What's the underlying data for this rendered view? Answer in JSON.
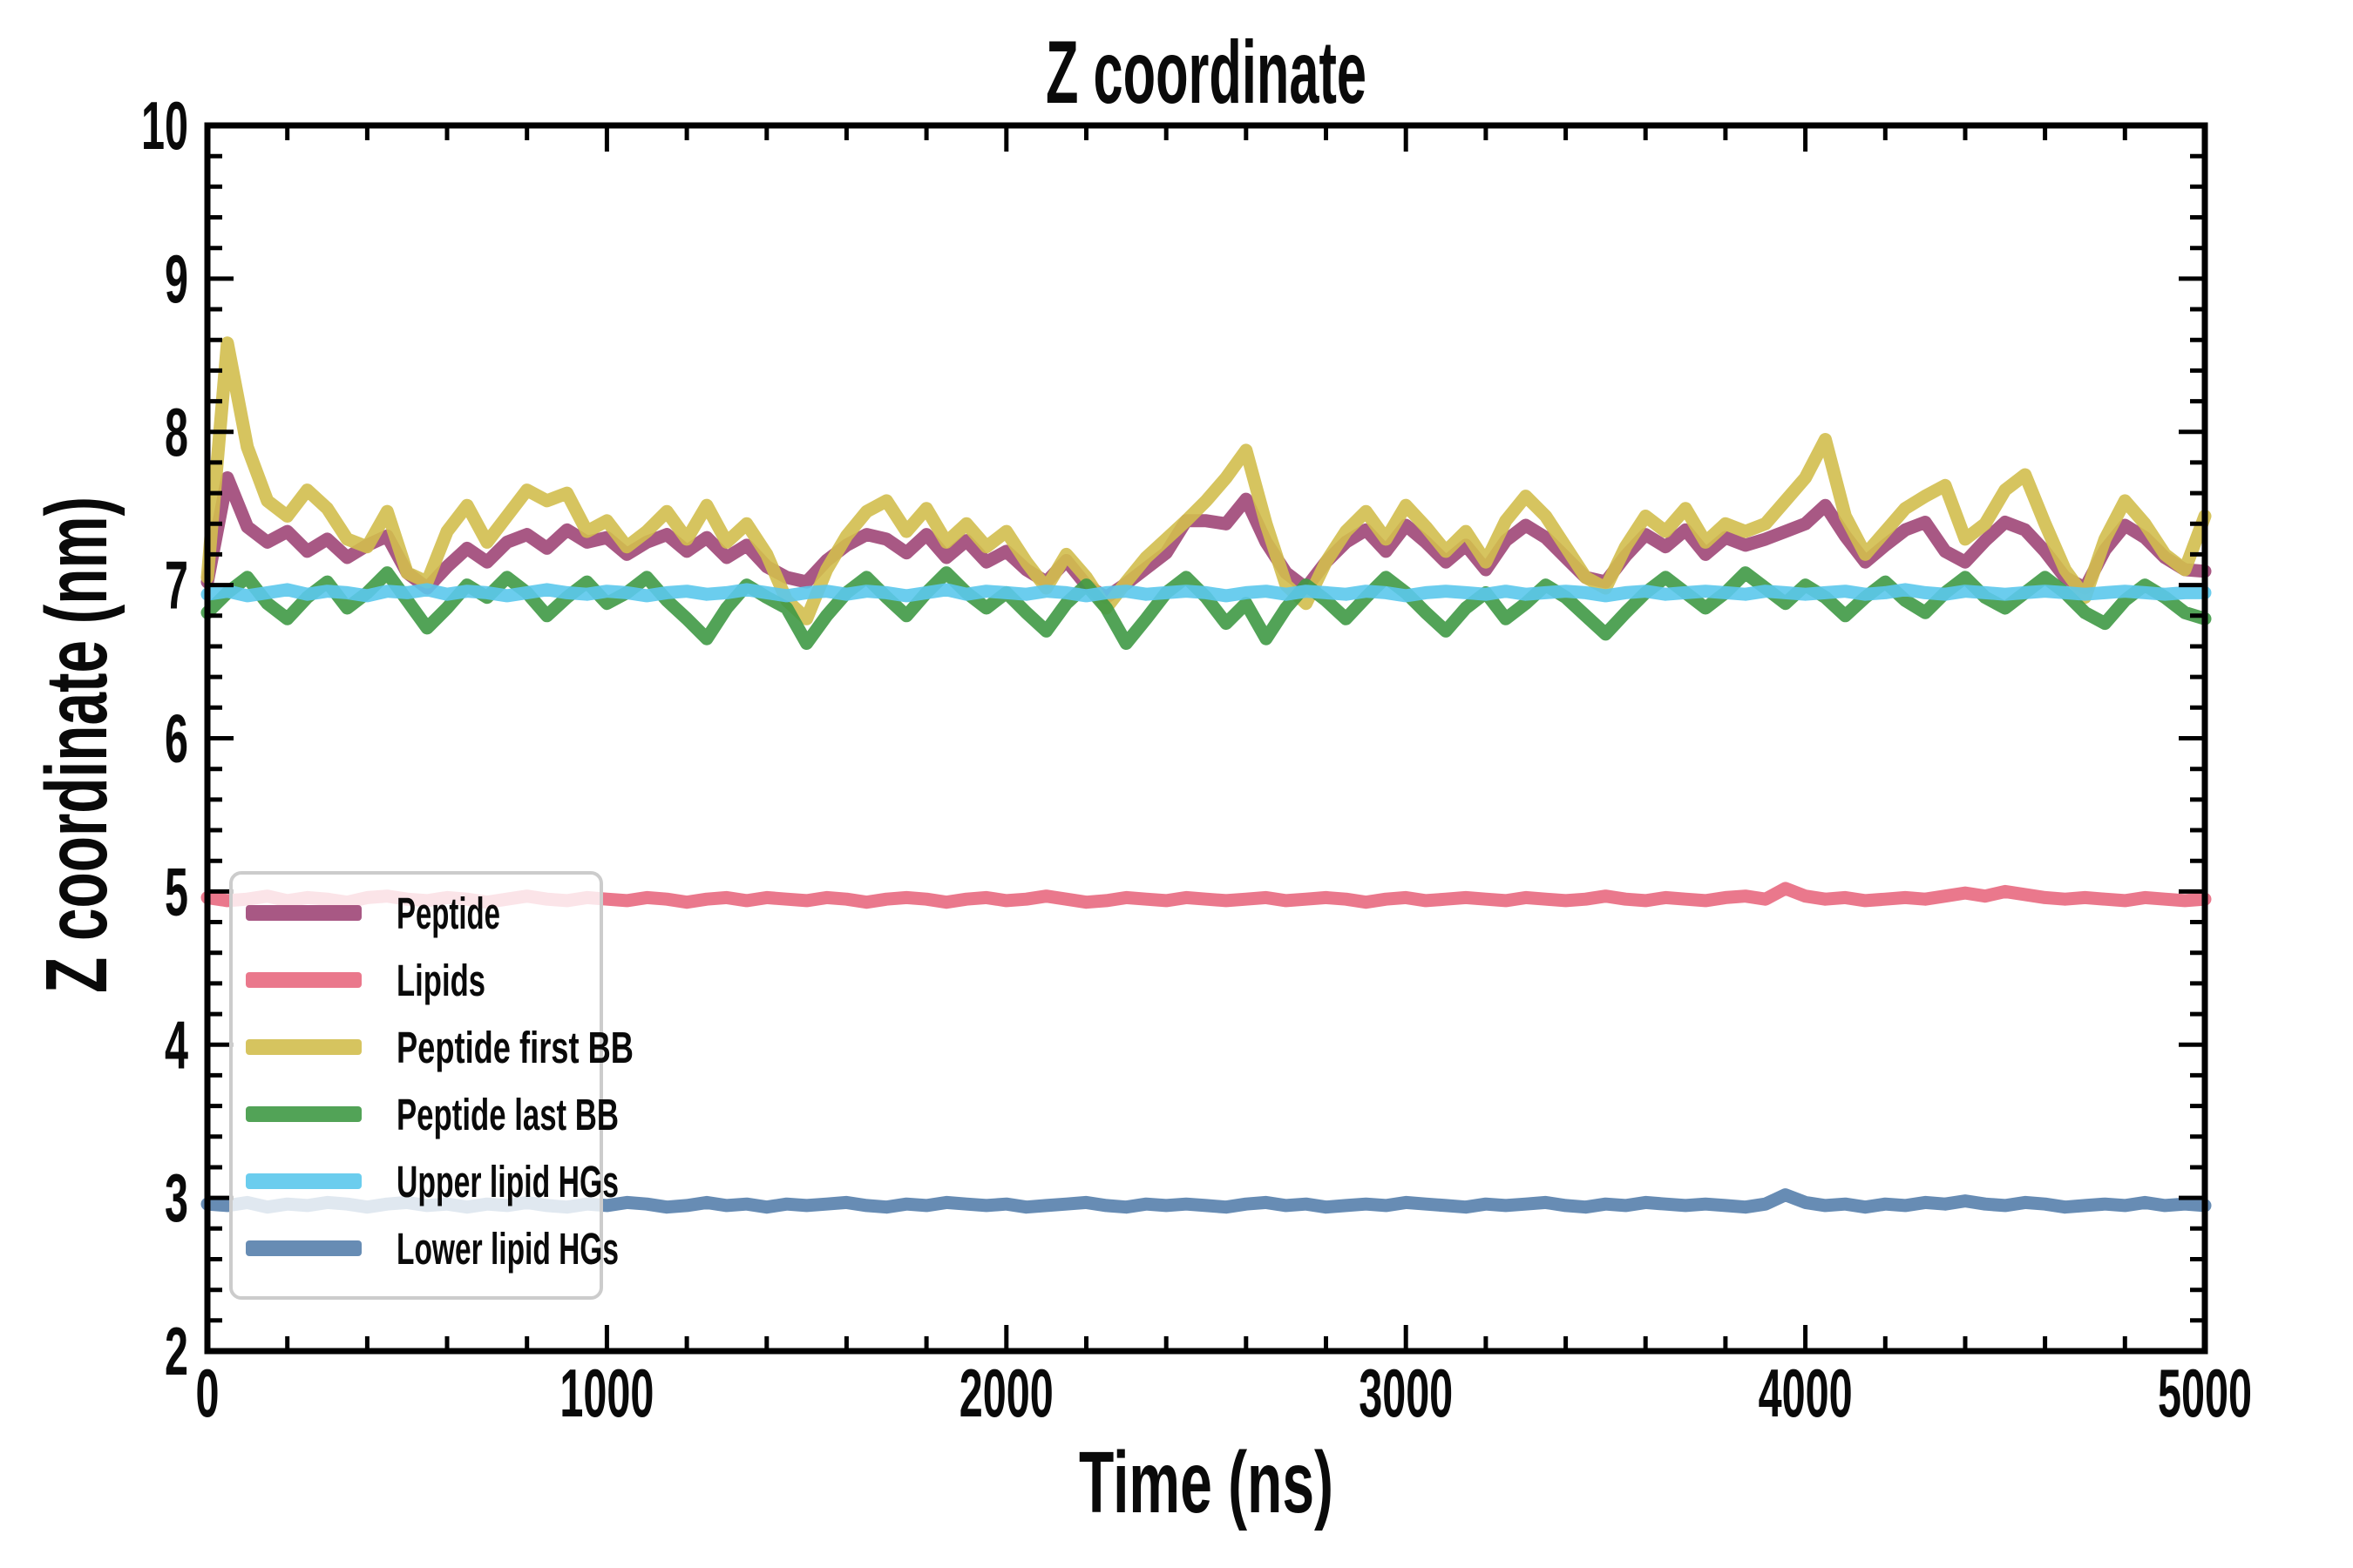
{
  "chart_data": {
    "type": "line",
    "title": "Z coordinate",
    "xlabel": "Time (ns)",
    "ylabel": "Z coordinate (nm)",
    "xlim": [
      0,
      5000
    ],
    "ylim": [
      2,
      10
    ],
    "x_tick_labels": [
      "0",
      "1000",
      "2000",
      "3000",
      "4000",
      "5000"
    ],
    "y_tick_labels": [
      "2",
      "3",
      "4",
      "5",
      "6",
      "7",
      "8",
      "9",
      "10"
    ],
    "x_major_step": 1000,
    "x_minor_step": 200,
    "y_major_step": 1,
    "y_minor_step": 0.2,
    "grid": false,
    "axis_color": "#000000",
    "background": "#ffffff",
    "line_alpha": 0.9,
    "legend": {
      "position": "lower-left",
      "border_color": "#cccccc",
      "background": "rgba(255,255,255,0.8)"
    },
    "x_start": 0,
    "x_step": 50,
    "series": [
      {
        "name": "Peptide",
        "color": "#9E4677",
        "values": [
          7.02,
          7.7,
          7.38,
          7.28,
          7.35,
          7.22,
          7.3,
          7.18,
          7.26,
          7.32,
          7.08,
          6.98,
          7.12,
          7.24,
          7.15,
          7.28,
          7.33,
          7.24,
          7.36,
          7.28,
          7.31,
          7.2,
          7.28,
          7.33,
          7.22,
          7.31,
          7.18,
          7.26,
          7.12,
          7.05,
          7.02,
          7.16,
          7.26,
          7.33,
          7.3,
          7.21,
          7.33,
          7.18,
          7.29,
          7.15,
          7.22,
          7.1,
          7.02,
          7.16,
          7.0,
          6.92,
          7.01,
          7.11,
          7.21,
          7.42,
          7.42,
          7.4,
          7.56,
          7.28,
          7.08,
          6.98,
          7.15,
          7.28,
          7.36,
          7.22,
          7.39,
          7.28,
          7.15,
          7.26,
          7.1,
          7.29,
          7.39,
          7.31,
          7.18,
          7.05,
          7.02,
          7.19,
          7.33,
          7.25,
          7.36,
          7.2,
          7.31,
          7.26,
          7.3,
          7.35,
          7.4,
          7.52,
          7.32,
          7.15,
          7.26,
          7.36,
          7.41,
          7.22,
          7.15,
          7.29,
          7.41,
          7.36,
          7.22,
          7.05,
          6.98,
          7.23,
          7.39,
          7.31,
          7.18,
          7.1,
          7.09
        ]
      },
      {
        "name": "Lipids",
        "color": "#E8697F",
        "values": [
          4.96,
          4.94,
          4.95,
          4.97,
          4.94,
          4.96,
          4.95,
          4.93,
          4.96,
          4.97,
          4.95,
          4.94,
          4.96,
          4.95,
          4.93,
          4.95,
          4.97,
          4.95,
          4.94,
          4.96,
          4.95,
          4.94,
          4.96,
          4.95,
          4.93,
          4.95,
          4.96,
          4.94,
          4.96,
          4.95,
          4.94,
          4.96,
          4.95,
          4.93,
          4.95,
          4.96,
          4.95,
          4.93,
          4.95,
          4.96,
          4.94,
          4.95,
          4.97,
          4.95,
          4.93,
          4.94,
          4.96,
          4.95,
          4.94,
          4.96,
          4.95,
          4.94,
          4.95,
          4.96,
          4.94,
          4.95,
          4.96,
          4.95,
          4.93,
          4.95,
          4.96,
          4.94,
          4.95,
          4.96,
          4.95,
          4.94,
          4.96,
          4.95,
          4.94,
          4.95,
          4.97,
          4.95,
          4.94,
          4.96,
          4.95,
          4.94,
          4.96,
          4.97,
          4.95,
          5.02,
          4.97,
          4.95,
          4.96,
          4.94,
          4.95,
          4.96,
          4.95,
          4.97,
          4.99,
          4.97,
          5.0,
          4.98,
          4.96,
          4.95,
          4.96,
          4.95,
          4.94,
          4.96,
          4.95,
          4.94,
          4.95
        ]
      },
      {
        "name": "Peptide first BB",
        "color": "#D2BE4E",
        "values": [
          7.05,
          8.58,
          7.9,
          7.55,
          7.45,
          7.62,
          7.5,
          7.3,
          7.25,
          7.48,
          7.08,
          7.02,
          7.35,
          7.52,
          7.28,
          7.45,
          7.62,
          7.55,
          7.6,
          7.35,
          7.42,
          7.25,
          7.35,
          7.48,
          7.3,
          7.52,
          7.28,
          7.4,
          7.2,
          6.9,
          6.78,
          7.1,
          7.32,
          7.48,
          7.55,
          7.35,
          7.5,
          7.28,
          7.4,
          7.25,
          7.35,
          7.15,
          6.98,
          7.2,
          7.05,
          6.85,
          7.02,
          7.18,
          7.3,
          7.42,
          7.55,
          7.7,
          7.88,
          7.4,
          7.0,
          6.88,
          7.15,
          7.35,
          7.48,
          7.3,
          7.52,
          7.38,
          7.22,
          7.35,
          7.15,
          7.42,
          7.58,
          7.45,
          7.25,
          7.05,
          6.98,
          7.25,
          7.45,
          7.35,
          7.5,
          7.28,
          7.4,
          7.35,
          7.4,
          7.55,
          7.7,
          7.95,
          7.45,
          7.2,
          7.35,
          7.5,
          7.58,
          7.65,
          7.3,
          7.4,
          7.62,
          7.72,
          7.4,
          7.1,
          6.92,
          7.3,
          7.55,
          7.4,
          7.2,
          7.1,
          7.45
        ]
      },
      {
        "name": "Peptide last BB",
        "color": "#3F9945",
        "values": [
          6.82,
          6.95,
          7.05,
          6.88,
          6.78,
          6.92,
          7.02,
          6.85,
          6.95,
          7.08,
          6.9,
          6.72,
          6.85,
          7.0,
          6.92,
          7.05,
          6.95,
          6.8,
          6.92,
          7.02,
          6.88,
          6.95,
          7.05,
          6.9,
          6.78,
          6.65,
          6.85,
          7.0,
          6.92,
          6.85,
          6.62,
          6.8,
          6.95,
          7.05,
          6.92,
          6.8,
          6.95,
          7.08,
          6.95,
          6.85,
          6.95,
          6.82,
          6.7,
          6.88,
          7.0,
          6.85,
          6.62,
          6.78,
          6.95,
          7.05,
          6.92,
          6.75,
          6.88,
          6.65,
          6.85,
          7.0,
          6.9,
          6.78,
          6.92,
          7.05,
          6.95,
          6.82,
          6.7,
          6.85,
          6.95,
          6.78,
          6.88,
          7.0,
          6.92,
          6.8,
          6.68,
          6.82,
          6.95,
          7.05,
          6.95,
          6.85,
          6.95,
          7.08,
          6.98,
          6.88,
          7.0,
          6.92,
          6.8,
          6.92,
          7.02,
          6.9,
          6.82,
          6.95,
          7.05,
          6.92,
          6.85,
          6.95,
          7.05,
          6.95,
          6.82,
          6.75,
          6.9,
          7.0,
          6.92,
          6.82,
          6.78
        ]
      },
      {
        "name": "Upper lipid HGs",
        "color": "#5BC8EC",
        "values": [
          6.94,
          6.96,
          6.93,
          6.95,
          6.97,
          6.94,
          6.96,
          6.95,
          6.93,
          6.96,
          6.95,
          6.97,
          6.94,
          6.96,
          6.95,
          6.93,
          6.95,
          6.97,
          6.95,
          6.94,
          6.96,
          6.95,
          6.93,
          6.95,
          6.96,
          6.94,
          6.95,
          6.97,
          6.95,
          6.93,
          6.95,
          6.96,
          6.94,
          6.96,
          6.95,
          6.93,
          6.95,
          6.97,
          6.94,
          6.96,
          6.95,
          6.94,
          6.96,
          6.95,
          6.93,
          6.95,
          6.96,
          6.94,
          6.95,
          6.96,
          6.95,
          6.93,
          6.95,
          6.96,
          6.94,
          6.96,
          6.95,
          6.94,
          6.96,
          6.95,
          6.93,
          6.95,
          6.96,
          6.95,
          6.94,
          6.96,
          6.94,
          6.95,
          6.96,
          6.95,
          6.93,
          6.95,
          6.96,
          6.94,
          6.95,
          6.96,
          6.95,
          6.94,
          6.96,
          6.95,
          6.94,
          6.95,
          6.96,
          6.94,
          6.95,
          6.97,
          6.95,
          6.94,
          6.96,
          6.95,
          6.94,
          6.95,
          6.96,
          6.95,
          6.94,
          6.95,
          6.96,
          6.95,
          6.94,
          6.95,
          6.95
        ]
      },
      {
        "name": "Lower lipid HGs",
        "color": "#567FAC",
        "values": [
          2.96,
          2.95,
          2.97,
          2.94,
          2.96,
          2.95,
          2.97,
          2.96,
          2.94,
          2.96,
          2.97,
          2.95,
          2.96,
          2.94,
          2.96,
          2.95,
          2.97,
          2.95,
          2.94,
          2.96,
          2.95,
          2.97,
          2.96,
          2.94,
          2.95,
          2.97,
          2.95,
          2.96,
          2.94,
          2.96,
          2.95,
          2.96,
          2.97,
          2.95,
          2.94,
          2.96,
          2.95,
          2.97,
          2.96,
          2.95,
          2.96,
          2.94,
          2.95,
          2.96,
          2.97,
          2.95,
          2.94,
          2.96,
          2.95,
          2.96,
          2.95,
          2.94,
          2.96,
          2.97,
          2.95,
          2.96,
          2.94,
          2.95,
          2.96,
          2.95,
          2.97,
          2.96,
          2.95,
          2.94,
          2.96,
          2.95,
          2.96,
          2.97,
          2.95,
          2.94,
          2.96,
          2.95,
          2.97,
          2.96,
          2.95,
          2.96,
          2.95,
          2.94,
          2.96,
          3.02,
          2.97,
          2.95,
          2.96,
          2.94,
          2.96,
          2.95,
          2.97,
          2.96,
          2.98,
          2.96,
          2.95,
          2.97,
          2.96,
          2.94,
          2.95,
          2.96,
          2.95,
          2.97,
          2.95,
          2.96,
          2.95
        ]
      }
    ]
  }
}
